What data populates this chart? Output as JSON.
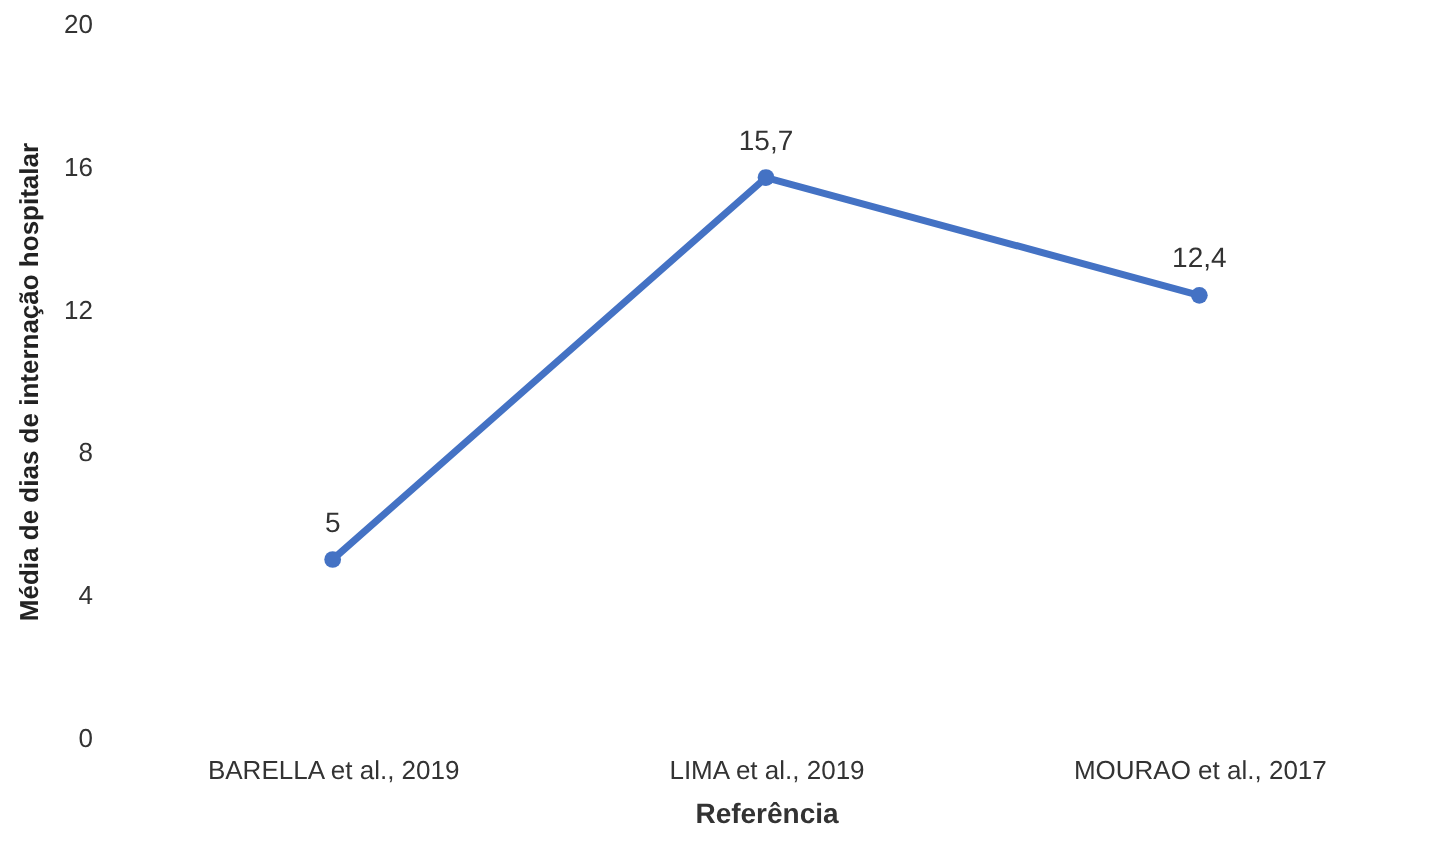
{
  "chart_data": {
    "type": "line",
    "xlabel": "Referência",
    "ylabel": "Média de dias de internação hospitalar",
    "categories": [
      "BARELLA et al., 2019",
      "LIMA et al., 2019",
      "MOURAO et al., 2017"
    ],
    "series": [
      {
        "color": "#4472c4",
        "values": [
          5,
          15.7,
          12.4
        ],
        "value_labels": [
          "5",
          "15,7",
          "12,4"
        ]
      }
    ],
    "ylim": [
      0,
      20
    ],
    "yticks": [
      0,
      4,
      8,
      12,
      16,
      20
    ],
    "grid": false,
    "marker": "circle",
    "line_style": "solid"
  }
}
